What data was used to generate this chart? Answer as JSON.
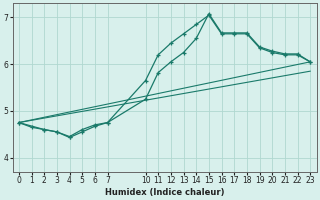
{
  "bg_color": "#d8f0ec",
  "grid_color": "#b0d8d0",
  "line_color": "#1a7a6a",
  "xlabel": "Humidex (Indice chaleur)",
  "xlim": [
    -0.5,
    23.5
  ],
  "ylim": [
    3.7,
    7.3
  ],
  "yticks": [
    4,
    5,
    6,
    7
  ],
  "xticks": [
    0,
    1,
    2,
    3,
    4,
    5,
    6,
    7,
    10,
    11,
    12,
    13,
    14,
    15,
    16,
    17,
    18,
    19,
    20,
    21,
    22,
    23
  ],
  "line1_x": [
    0,
    1,
    2,
    3,
    4,
    5,
    6,
    7,
    10,
    11,
    12,
    13,
    14,
    15,
    16,
    17,
    18,
    19,
    20,
    21,
    22,
    23
  ],
  "line1_y": [
    4.75,
    4.65,
    4.6,
    4.55,
    4.45,
    4.6,
    4.7,
    4.75,
    5.65,
    6.2,
    6.45,
    6.65,
    6.85,
    7.05,
    6.65,
    6.65,
    6.65,
    6.35,
    6.25,
    6.2,
    6.2,
    6.05
  ],
  "line2_x": [
    0,
    2,
    3,
    4,
    5,
    6,
    7,
    10,
    11,
    12,
    13,
    14,
    15,
    16,
    17,
    18,
    19,
    20,
    21,
    22,
    23
  ],
  "line2_y": [
    4.75,
    4.6,
    4.55,
    4.43,
    4.55,
    4.67,
    4.75,
    5.25,
    5.82,
    6.05,
    6.25,
    6.55,
    7.08,
    6.67,
    6.67,
    6.67,
    6.37,
    6.28,
    6.22,
    6.22,
    6.05
  ],
  "line3_x": [
    0,
    23
  ],
  "line3_y": [
    4.75,
    6.05
  ],
  "line4_x": [
    0,
    23
  ],
  "line4_y": [
    4.75,
    5.85
  ],
  "xlabel_fontsize": 6,
  "tick_fontsize": 5.5
}
